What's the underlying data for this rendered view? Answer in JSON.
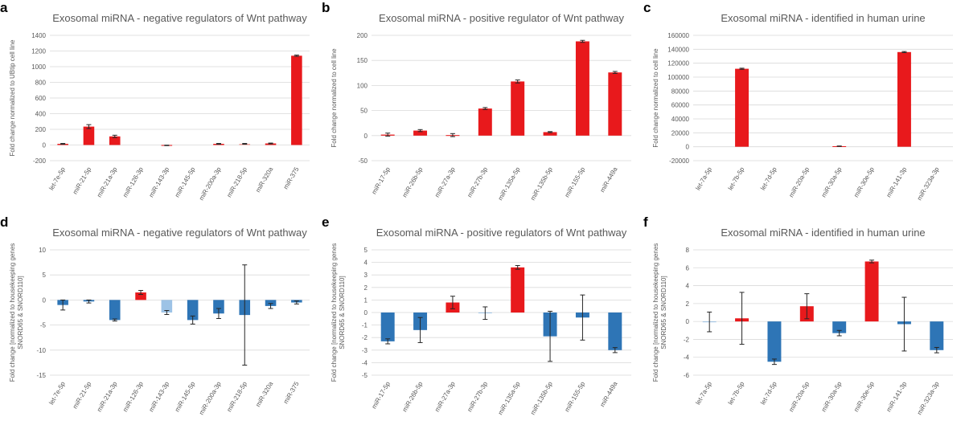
{
  "colors": {
    "red": "#e8191c",
    "blue": "#2e75b6",
    "light_red": "#f4a09a",
    "light_blue": "#9dc3e6",
    "grid": "#d9d9d9",
    "text": "#595959"
  },
  "chart_data": [
    {
      "id": "a",
      "panel_label": "a",
      "type": "bar",
      "title": "Exosomal miRNA - negative regulators of Wnt pathway",
      "ylabel": "Fold change normalized to UBtip cell line",
      "xlabel": "",
      "ylim": [
        -200,
        1400
      ],
      "yticks": [
        -200,
        0,
        200,
        400,
        600,
        800,
        1000,
        1200,
        1400
      ],
      "grid": true,
      "categories": [
        "let-7e-5p",
        "miR-21-5p",
        "miR-21a-3p",
        "miR-126-3p",
        "miR-143-3p",
        "miR-145-5p",
        "miR-200a-3p",
        "miR-218-5p",
        "miR-320a",
        "miR-375"
      ],
      "values": [
        15,
        235,
        110,
        0,
        -5,
        0,
        15,
        15,
        20,
        1140
      ],
      "errors": [
        5,
        25,
        15,
        0,
        3,
        0,
        5,
        5,
        5,
        8
      ],
      "colors": [
        "red",
        "red",
        "red",
        "red",
        "red",
        "red",
        "red",
        "light_red",
        "red",
        "red"
      ]
    },
    {
      "id": "b",
      "panel_label": "b",
      "type": "bar",
      "title": "Exosomal miRNA - positive regulator of Wnt pathway",
      "ylabel": "Fold change normalized to cell line",
      "xlabel": "",
      "ylim": [
        -50,
        200
      ],
      "yticks": [
        -50,
        0,
        50,
        100,
        150,
        200
      ],
      "grid": true,
      "categories": [
        "miR-17-5p",
        "miR-26b-5p",
        "miR-27a-3p",
        "miR-27b-3p",
        "miR-135a-5p",
        "miR-135b-5p",
        "miR-155-5p",
        "miR-449a"
      ],
      "values": [
        2,
        10,
        1,
        54,
        108,
        7,
        188,
        126
      ],
      "errors": [
        3,
        2,
        3,
        2,
        3,
        1,
        2,
        2
      ],
      "colors": [
        "red",
        "red",
        "red",
        "red",
        "red",
        "red",
        "red",
        "red"
      ]
    },
    {
      "id": "c",
      "panel_label": "c",
      "type": "bar",
      "title": "Exosomal miRNA - identified in human urine",
      "ylabel": "Fold change normalized to cell line",
      "xlabel": "",
      "ylim": [
        -20000,
        160000
      ],
      "yticks": [
        -20000,
        0,
        20000,
        40000,
        60000,
        80000,
        100000,
        120000,
        140000,
        160000
      ],
      "grid": true,
      "categories": [
        "let-7a-5p",
        "let-7b-5p",
        "let-7d-5p",
        "miR-20a-5p",
        "miR-30a-5p",
        "miR-30e-5p",
        "miR-141-3p",
        "miR-323a-3p"
      ],
      "values": [
        0,
        112000,
        0,
        0,
        800,
        0,
        136000,
        0
      ],
      "errors": [
        0,
        800,
        0,
        0,
        300,
        0,
        800,
        0
      ],
      "colors": [
        "red",
        "red",
        "red",
        "red",
        "red",
        "red",
        "red",
        "red"
      ]
    },
    {
      "id": "d",
      "panel_label": "d",
      "type": "bar",
      "title": "Exosomal miRNA - negative regulators of Wnt pathway",
      "ylabel": "Fold change [normalized to housekeeping genes SNORD65 & SNORD110]",
      "xlabel": "",
      "ylim": [
        -15,
        10
      ],
      "yticks": [
        -15,
        -10,
        -5,
        0,
        5,
        10
      ],
      "grid": true,
      "categories": [
        "let-7e-5p",
        "miR-21-5p",
        "miR-21a-3p",
        "miR-126-3p",
        "miR-143-3p",
        "miR-145-5p",
        "miR-200a-3p",
        "miR-218-5p",
        "miR-320a",
        "miR-375"
      ],
      "values": [
        -1.0,
        -0.3,
        -4.0,
        1.5,
        -2.5,
        -4.0,
        -2.7,
        -3.0,
        -1.2,
        -0.5
      ],
      "errors": [
        1.0,
        0.3,
        0.2,
        0.4,
        0.4,
        0.8,
        1.0,
        10.0,
        0.5,
        0.3
      ],
      "colors": [
        "blue",
        "blue",
        "blue",
        "red",
        "light_blue",
        "blue",
        "blue",
        "blue",
        "blue",
        "blue"
      ]
    },
    {
      "id": "e",
      "panel_label": "e",
      "type": "bar",
      "title": "Exosomal miRNA - positive regulators of Wnt pathway",
      "ylabel": "Fold change [normalized to housekeeping genes SNORD65 & SNORD110]",
      "xlabel": "",
      "ylim": [
        -5,
        5
      ],
      "yticks": [
        -5,
        -4,
        -3,
        -2,
        -1,
        0,
        1,
        2,
        3,
        4,
        5
      ],
      "grid": true,
      "categories": [
        "miR-17-5p",
        "miR-26b-5p",
        "miR-27a-3p",
        "miR-27b-3p",
        "miR-135a-5p",
        "miR-135b-5p",
        "miR-155-5p",
        "miR-449a"
      ],
      "values": [
        -2.3,
        -1.4,
        0.8,
        -0.05,
        3.6,
        -1.9,
        -0.4,
        -3.0
      ],
      "errors": [
        0.2,
        1.0,
        0.5,
        0.5,
        0.15,
        2.0,
        1.8,
        0.2
      ],
      "colors": [
        "blue",
        "blue",
        "red",
        "light_blue",
        "red",
        "blue",
        "blue",
        "blue"
      ]
    },
    {
      "id": "f",
      "panel_label": "f",
      "type": "bar",
      "title": "Exosomal miRNA - identified in human urine",
      "ylabel": "Fold change [normalized to housekeeping genes SNORD65 & SNORD110]",
      "xlabel": "",
      "ylim": [
        -6,
        8
      ],
      "yticks": [
        -6,
        -4,
        -2,
        0,
        2,
        4,
        6,
        8
      ],
      "grid": true,
      "categories": [
        "let-7a-5p",
        "let-7b-5p",
        "let-7d-5p",
        "miR-20a-5p",
        "miR-30a-5p",
        "miR-30e-5p",
        "miR-141-3p",
        "miR-323a-3p"
      ],
      "values": [
        -0.05,
        0.35,
        -4.5,
        1.7,
        -1.3,
        6.7,
        -0.3,
        -3.2
      ],
      "errors": [
        1.1,
        2.9,
        0.3,
        1.4,
        0.3,
        0.15,
        3.0,
        0.3
      ],
      "colors": [
        "light_blue",
        "red",
        "blue",
        "red",
        "blue",
        "red",
        "blue",
        "blue"
      ]
    }
  ]
}
